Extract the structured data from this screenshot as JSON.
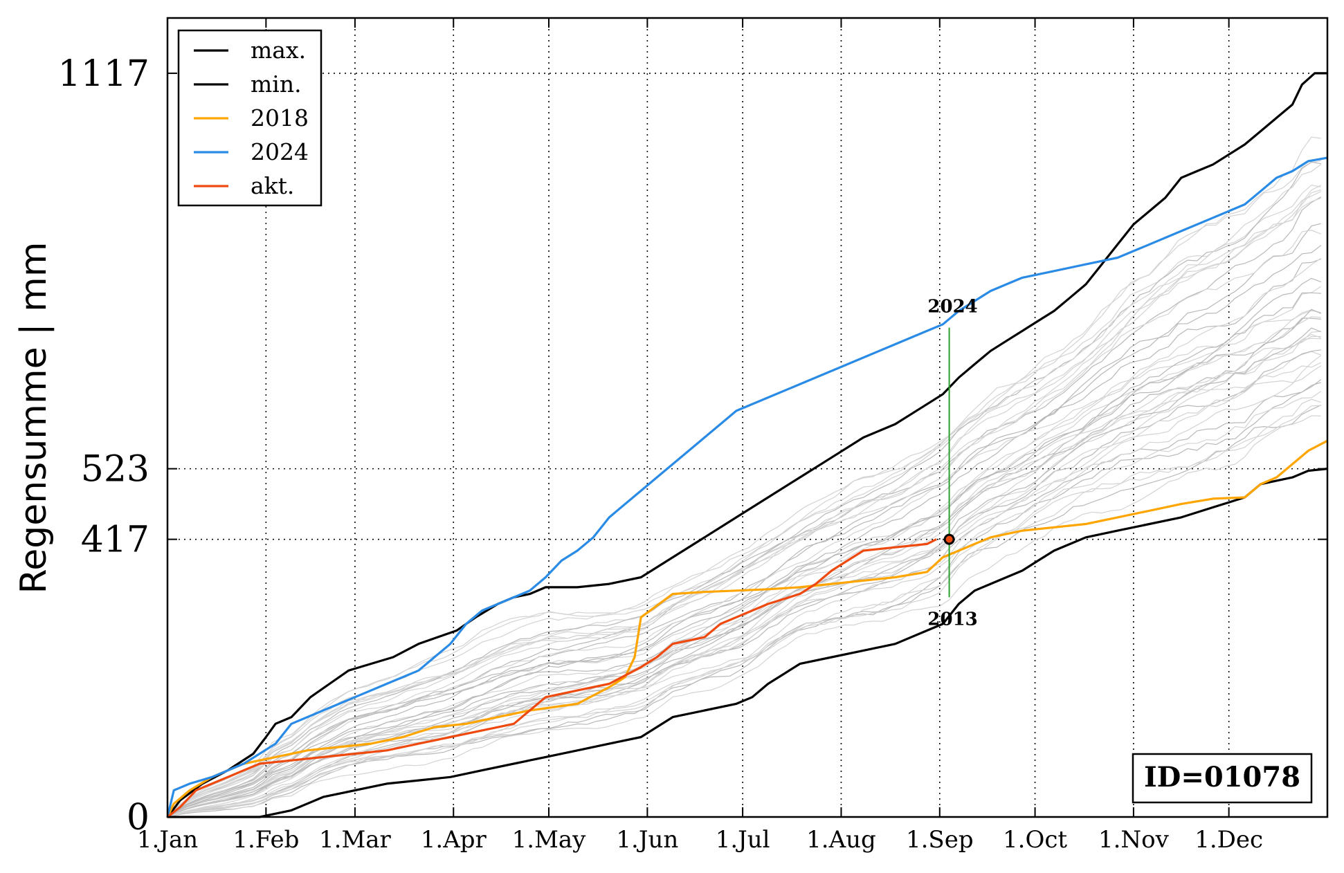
{
  "chart_data": {
    "type": "line",
    "title": "",
    "ylabel": "Regensumme | mm",
    "xlabel": "",
    "x_ticks": [
      "1.Jan",
      "1.Feb",
      "1.Mar",
      "1.Apr",
      "1.May",
      "1.Jun",
      "1.Jul",
      "1.Aug",
      "1.Sep",
      "1.Oct",
      "1.Nov",
      "1.Dec"
    ],
    "y_ticks": [
      0,
      417,
      523,
      1117
    ],
    "ylim": [
      0,
      1200
    ],
    "xlim_day_of_year": [
      1,
      366
    ],
    "grid": "dotted at tick positions",
    "legend_position": "top-left",
    "id_label": "ID=01078",
    "markers": {
      "upper_label": "2024",
      "lower_label": "2013",
      "current_point": {
        "date": "4.Sep",
        "value_mm": 417
      }
    },
    "series": [
      {
        "name": "max.",
        "color": "#000000",
        "points": [
          [
            1,
            0
          ],
          [
            5,
            25
          ],
          [
            12,
            50
          ],
          [
            20,
            70
          ],
          [
            28,
            95
          ],
          [
            32,
            120
          ],
          [
            35,
            140
          ],
          [
            40,
            150
          ],
          [
            46,
            180
          ],
          [
            52,
            200
          ],
          [
            58,
            220
          ],
          [
            65,
            230
          ],
          [
            72,
            240
          ],
          [
            80,
            260
          ],
          [
            86,
            270
          ],
          [
            92,
            280
          ],
          [
            98,
            300
          ],
          [
            105,
            320
          ],
          [
            110,
            330
          ],
          [
            115,
            335
          ],
          [
            120,
            345
          ],
          [
            130,
            345
          ],
          [
            140,
            350
          ],
          [
            150,
            360
          ],
          [
            160,
            390
          ],
          [
            170,
            420
          ],
          [
            180,
            450
          ],
          [
            190,
            480
          ],
          [
            200,
            510
          ],
          [
            210,
            540
          ],
          [
            220,
            570
          ],
          [
            230,
            590
          ],
          [
            235,
            605
          ],
          [
            240,
            620
          ],
          [
            245,
            635
          ],
          [
            250,
            660
          ],
          [
            255,
            680
          ],
          [
            260,
            700
          ],
          [
            265,
            715
          ],
          [
            270,
            730
          ],
          [
            275,
            745
          ],
          [
            280,
            760
          ],
          [
            285,
            780
          ],
          [
            290,
            800
          ],
          [
            295,
            830
          ],
          [
            300,
            860
          ],
          [
            305,
            890
          ],
          [
            310,
            910
          ],
          [
            315,
            930
          ],
          [
            320,
            960
          ],
          [
            325,
            970
          ],
          [
            330,
            980
          ],
          [
            335,
            995
          ],
          [
            340,
            1010
          ],
          [
            345,
            1030
          ],
          [
            350,
            1050
          ],
          [
            355,
            1070
          ],
          [
            358,
            1100
          ],
          [
            362,
            1117
          ],
          [
            366,
            1117
          ]
        ]
      },
      {
        "name": "min.",
        "color": "#000000",
        "points": [
          [
            1,
            0
          ],
          [
            30,
            0
          ],
          [
            40,
            10
          ],
          [
            45,
            20
          ],
          [
            50,
            30
          ],
          [
            60,
            40
          ],
          [
            70,
            50
          ],
          [
            80,
            55
          ],
          [
            90,
            60
          ],
          [
            100,
            70
          ],
          [
            110,
            80
          ],
          [
            120,
            90
          ],
          [
            130,
            100
          ],
          [
            140,
            110
          ],
          [
            150,
            120
          ],
          [
            160,
            150
          ],
          [
            170,
            160
          ],
          [
            180,
            170
          ],
          [
            185,
            180
          ],
          [
            190,
            200
          ],
          [
            195,
            215
          ],
          [
            200,
            230
          ],
          [
            210,
            240
          ],
          [
            220,
            250
          ],
          [
            230,
            260
          ],
          [
            240,
            280
          ],
          [
            245,
            290
          ],
          [
            250,
            320
          ],
          [
            255,
            340
          ],
          [
            260,
            350
          ],
          [
            265,
            360
          ],
          [
            270,
            370
          ],
          [
            275,
            385
          ],
          [
            280,
            400
          ],
          [
            285,
            410
          ],
          [
            290,
            420
          ],
          [
            300,
            430
          ],
          [
            310,
            440
          ],
          [
            320,
            450
          ],
          [
            330,
            465
          ],
          [
            340,
            480
          ],
          [
            345,
            500
          ],
          [
            350,
            505
          ],
          [
            355,
            510
          ],
          [
            360,
            520
          ],
          [
            366,
            523
          ]
        ]
      },
      {
        "name": "2018",
        "color": "#ffa500",
        "points": [
          [
            1,
            0
          ],
          [
            3,
            20
          ],
          [
            8,
            40
          ],
          [
            15,
            60
          ],
          [
            25,
            80
          ],
          [
            35,
            90
          ],
          [
            45,
            100
          ],
          [
            55,
            105
          ],
          [
            65,
            110
          ],
          [
            75,
            120
          ],
          [
            85,
            135
          ],
          [
            95,
            140
          ],
          [
            105,
            150
          ],
          [
            115,
            160
          ],
          [
            130,
            170
          ],
          [
            140,
            195
          ],
          [
            145,
            210
          ],
          [
            148,
            240
          ],
          [
            150,
            300
          ],
          [
            160,
            335
          ],
          [
            170,
            338
          ],
          [
            180,
            340
          ],
          [
            190,
            342
          ],
          [
            200,
            345
          ],
          [
            210,
            350
          ],
          [
            220,
            355
          ],
          [
            230,
            360
          ],
          [
            240,
            368
          ],
          [
            245,
            390
          ],
          [
            250,
            400
          ],
          [
            255,
            410
          ],
          [
            260,
            420
          ],
          [
            270,
            430
          ],
          [
            280,
            435
          ],
          [
            290,
            440
          ],
          [
            300,
            450
          ],
          [
            310,
            460
          ],
          [
            320,
            470
          ],
          [
            330,
            478
          ],
          [
            340,
            480
          ],
          [
            345,
            500
          ],
          [
            350,
            510
          ],
          [
            355,
            530
          ],
          [
            360,
            550
          ],
          [
            366,
            565
          ]
        ]
      },
      {
        "name": "2024",
        "color": "#2a8be6",
        "points": [
          [
            1,
            0
          ],
          [
            3,
            40
          ],
          [
            8,
            50
          ],
          [
            15,
            60
          ],
          [
            25,
            80
          ],
          [
            35,
            110
          ],
          [
            40,
            140
          ],
          [
            50,
            160
          ],
          [
            60,
            180
          ],
          [
            70,
            200
          ],
          [
            80,
            220
          ],
          [
            85,
            240
          ],
          [
            90,
            260
          ],
          [
            95,
            290
          ],
          [
            100,
            310
          ],
          [
            110,
            330
          ],
          [
            115,
            340
          ],
          [
            120,
            360
          ],
          [
            125,
            385
          ],
          [
            130,
            400
          ],
          [
            135,
            420
          ],
          [
            140,
            450
          ],
          [
            145,
            470
          ],
          [
            150,
            490
          ],
          [
            155,
            510
          ],
          [
            160,
            530
          ],
          [
            165,
            550
          ],
          [
            170,
            570
          ],
          [
            175,
            590
          ],
          [
            180,
            610
          ],
          [
            190,
            630
          ],
          [
            200,
            650
          ],
          [
            210,
            670
          ],
          [
            220,
            690
          ],
          [
            230,
            710
          ],
          [
            240,
            730
          ],
          [
            245,
            740
          ],
          [
            250,
            760
          ],
          [
            255,
            775
          ],
          [
            260,
            790
          ],
          [
            265,
            800
          ],
          [
            270,
            810
          ],
          [
            280,
            820
          ],
          [
            290,
            830
          ],
          [
            300,
            840
          ],
          [
            310,
            860
          ],
          [
            320,
            880
          ],
          [
            330,
            900
          ],
          [
            340,
            920
          ],
          [
            345,
            940
          ],
          [
            350,
            960
          ],
          [
            355,
            970
          ],
          [
            360,
            985
          ],
          [
            366,
            990
          ]
        ]
      },
      {
        "name": "akt.",
        "color": "#ee4a10",
        "points": [
          [
            1,
            0
          ],
          [
            5,
            15
          ],
          [
            10,
            40
          ],
          [
            15,
            50
          ],
          [
            20,
            60
          ],
          [
            25,
            70
          ],
          [
            30,
            80
          ],
          [
            40,
            85
          ],
          [
            50,
            90
          ],
          [
            60,
            95
          ],
          [
            70,
            100
          ],
          [
            80,
            110
          ],
          [
            90,
            120
          ],
          [
            100,
            130
          ],
          [
            110,
            140
          ],
          [
            115,
            160
          ],
          [
            120,
            180
          ],
          [
            130,
            190
          ],
          [
            140,
            200
          ],
          [
            150,
            225
          ],
          [
            155,
            240
          ],
          [
            160,
            260
          ],
          [
            170,
            270
          ],
          [
            175,
            290
          ],
          [
            180,
            300
          ],
          [
            185,
            310
          ],
          [
            190,
            320
          ],
          [
            200,
            335
          ],
          [
            205,
            350
          ],
          [
            210,
            370
          ],
          [
            215,
            385
          ],
          [
            220,
            400
          ],
          [
            230,
            405
          ],
          [
            240,
            410
          ],
          [
            243,
            417
          ]
        ]
      }
    ]
  }
}
